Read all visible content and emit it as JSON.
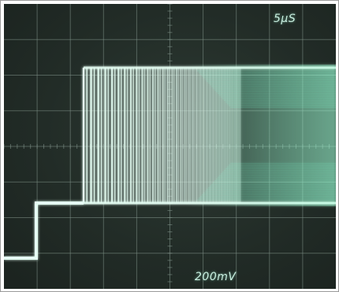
{
  "scope": {
    "timebase_label": "5μS",
    "volts_per_div_label": "200mV",
    "colors": {
      "screen": "#222c27",
      "graticule": "#7f9188",
      "trace": "#e6fff4",
      "trace_glow": "#7fffd0"
    }
  }
}
